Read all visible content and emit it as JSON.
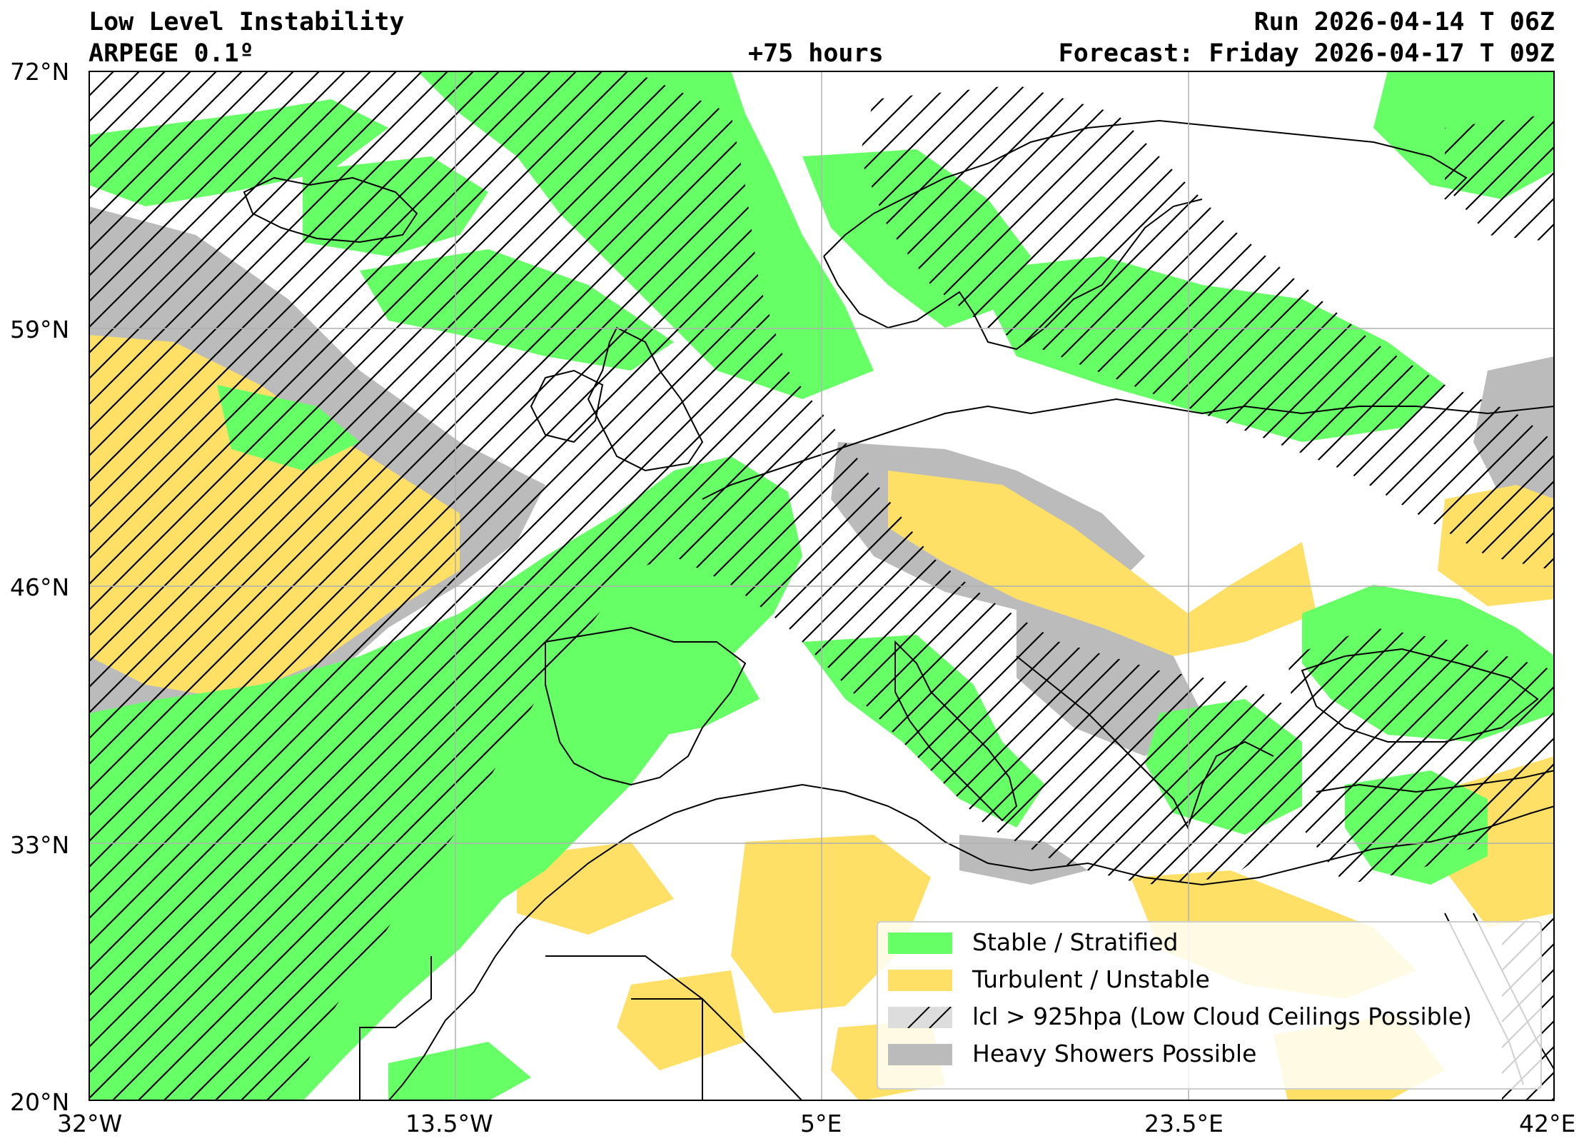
{
  "header": {
    "title": "Low Level Instability",
    "model": "ARPEGE 0.1º",
    "lead": "+75 hours",
    "run": "Run 2026-04-14 T 06Z",
    "forecast": "Forecast: Friday 2026-04-17 T 09Z"
  },
  "axes": {
    "lat_ticks": [
      "72°N",
      "59°N",
      "46°N",
      "33°N",
      "20°N"
    ],
    "lon_ticks": [
      "32°W",
      "13.5°W",
      "5°E",
      "23.5°E",
      "42°E"
    ],
    "lat_range": [
      20,
      72
    ],
    "lon_range": [
      -32,
      42
    ],
    "grid": true
  },
  "legend": {
    "items": [
      {
        "label": "Stable / Stratified",
        "color": "#66ff66",
        "style": "solid"
      },
      {
        "label": "Turbulent / Unstable",
        "color": "#ffe066",
        "style": "solid"
      },
      {
        "label": "lcl > 925hpa (Low Cloud Ceilings Possible)",
        "color": "#dddddd",
        "style": "hatch"
      },
      {
        "label": "Heavy Showers Possible",
        "color": "#bbbbbb",
        "style": "solid"
      }
    ]
  },
  "colors": {
    "stable": "#66ff66",
    "unstable": "#ffe066",
    "showers": "#bbbbbb",
    "coast": "#000000",
    "gridline": "#b0b0b0"
  }
}
